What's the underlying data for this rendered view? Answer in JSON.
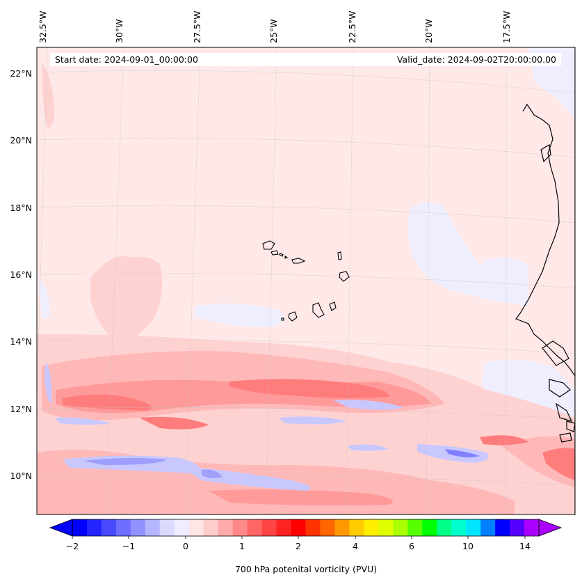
{
  "header": {
    "start_date": "Start date: 2024-09-01_00:00:00",
    "valid_date": "Valid_date: 2024-09-02T20:00:00.00"
  },
  "map": {
    "lon_labels": [
      "32.5°W",
      "30°W",
      "27.5°W",
      "25°W",
      "22.5°W",
      "20°W",
      "17.5°W"
    ],
    "lat_labels": [
      "22°N",
      "20°N",
      "18°N",
      "16°N",
      "14°N",
      "12°N",
      "10°N"
    ],
    "colors": {
      "land_coast": "#000000",
      "background_positive_small": "#ffe6e6",
      "negative_small": "#eeeeff"
    }
  },
  "colorbar": {
    "label": "700 hPa potenital vorticity (PVU)",
    "tick_labels": [
      "−2",
      "−1",
      "0",
      "1",
      "2",
      "4",
      "6",
      "10",
      "14"
    ],
    "colors": [
      "#0000ff",
      "#2424ff",
      "#4848ff",
      "#6d6dff",
      "#9191ff",
      "#b6b6ff",
      "#dadaff",
      "#ededff",
      "#ffe6e6",
      "#ffcccc",
      "#ffaaaa",
      "#ff8888",
      "#ff6666",
      "#ff4444",
      "#ff2222",
      "#ff0000",
      "#ff3300",
      "#ff6600",
      "#ff9900",
      "#ffcc00",
      "#ffee00",
      "#ddff00",
      "#aaff00",
      "#55ff00",
      "#00ff00",
      "#00ff88",
      "#00ffcc",
      "#00e5ff",
      "#0080ff",
      "#0000ff",
      "#5500ff",
      "#aa00ff"
    ]
  }
}
